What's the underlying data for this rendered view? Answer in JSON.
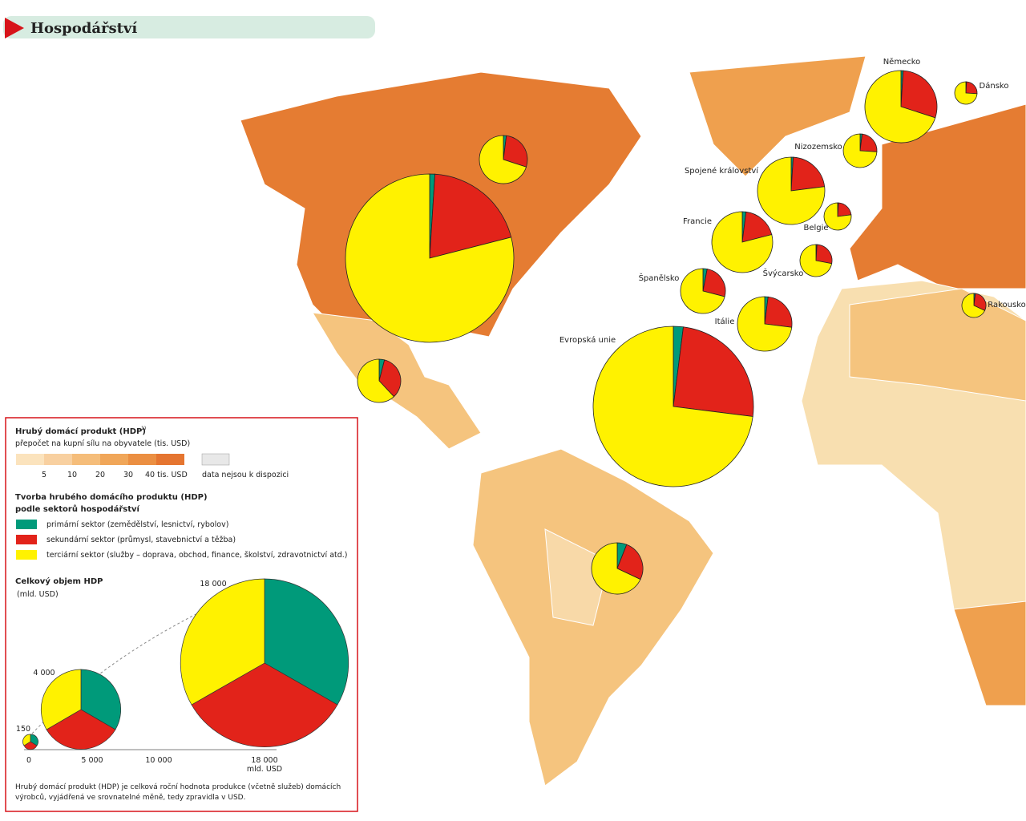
{
  "header": {
    "title": "Hospodářství"
  },
  "legend": {
    "gdp_title": "Hrubý domácí produkt (HDP)",
    "footnote_mark": "1)",
    "gdp_subtitle": "přepočet na kupní sílu na obyvatele (tis. USD)",
    "scale_labels": [
      "5",
      "10",
      "20",
      "30",
      "40 tis. USD"
    ],
    "no_data": "data nejsou k dispozici",
    "sector_title_1": "Tvorba hrubého domácího produktu (HDP)",
    "sector_title_2": "podle sektorů hospodářství",
    "sectors": [
      {
        "name": "primární sektor (zemědělství, lesnictví, rybolov)",
        "color": "#009a7a"
      },
      {
        "name": "sekundární sektor (průmysl, stavebnictví a těžba)",
        "color": "#e2231a"
      },
      {
        "name": "terciární sektor (služby – doprava, obchod, finance, školství, zdravotnictví atd.)",
        "color": "#fff200"
      }
    ],
    "total_title": "Celkový objem HDP",
    "total_unit": "(mld. USD)",
    "size_labels": [
      "18 000",
      "4 000",
      "150"
    ],
    "axis_labels": [
      "0",
      "5 000",
      "10 000",
      "18 000"
    ],
    "axis_unit": "mld. USD",
    "footnote": "Hrubý domácí produkt (HDP) je celková roční hodnota produkce (včetně služeb) domácích",
    "footnote_2": "výrobců, vyjádřená ve srovnatelné měně, tedy zpravidla v USD."
  },
  "pies": [
    {
      "label": null,
      "shares": [
        1,
        20,
        79
      ]
    },
    {
      "label": null,
      "shares": [
        2,
        28,
        70
      ]
    },
    {
      "label": null,
      "shares": [
        4,
        34,
        62
      ]
    },
    {
      "label": "Evropská unie",
      "shares": [
        2,
        25,
        73
      ]
    },
    {
      "label": "Německo",
      "shares": [
        1,
        29,
        70
      ]
    },
    {
      "label": "Dánsko",
      "shares": [
        1,
        25,
        74
      ]
    },
    {
      "label": "Nizozemsko",
      "shares": [
        2,
        24,
        74
      ]
    },
    {
      "label": "Spojené království",
      "shares": [
        1,
        22,
        77
      ]
    },
    {
      "label": "Francie",
      "shares": [
        2,
        19,
        79
      ]
    },
    {
      "label": "Belgie",
      "shares": [
        1,
        22,
        77
      ]
    },
    {
      "label": "Švýcarsko",
      "shares": [
        1,
        27,
        72
      ]
    },
    {
      "label": "Španělsko",
      "shares": [
        3,
        26,
        71
      ]
    },
    {
      "label": "Itálie",
      "shares": [
        2,
        25,
        73
      ]
    },
    {
      "label": "Rakousko",
      "shares": [
        2,
        30,
        68
      ]
    },
    {
      "label": null,
      "shares": [
        6,
        26,
        68
      ]
    }
  ]
}
